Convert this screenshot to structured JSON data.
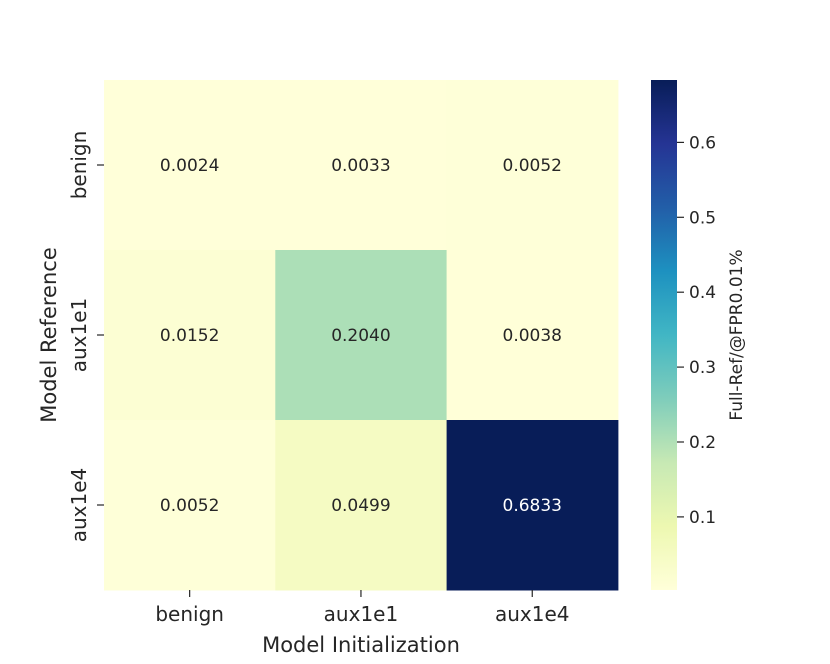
{
  "chart_data": {
    "type": "heatmap",
    "title": "",
    "xlabel": "Model Initialization",
    "ylabel": "Model Reference",
    "x_categories": [
      "benign",
      "aux1e1",
      "aux1e4"
    ],
    "y_categories": [
      "benign",
      "aux1e1",
      "aux1e4"
    ],
    "values": [
      [
        0.0024,
        0.0033,
        0.0052
      ],
      [
        0.0152,
        0.204,
        0.0038
      ],
      [
        0.0052,
        0.0499,
        0.6833
      ]
    ],
    "value_labels": [
      [
        "0.0024",
        "0.0033",
        "0.0052"
      ],
      [
        "0.0152",
        "0.2040",
        "0.0038"
      ],
      [
        "0.0052",
        "0.0499",
        "0.6833"
      ]
    ],
    "colormap": "YlGnBu",
    "colorbar": {
      "label": "Full-Ref/@FPR0.01%",
      "range": [
        0.0024,
        0.6833
      ],
      "ticks": [
        0.1,
        0.2,
        0.3,
        0.4,
        0.5,
        0.6
      ],
      "tick_labels": [
        "0.1",
        "0.2",
        "0.3",
        "0.4",
        "0.5",
        "0.6"
      ],
      "placement": "right"
    },
    "grid": false
  }
}
